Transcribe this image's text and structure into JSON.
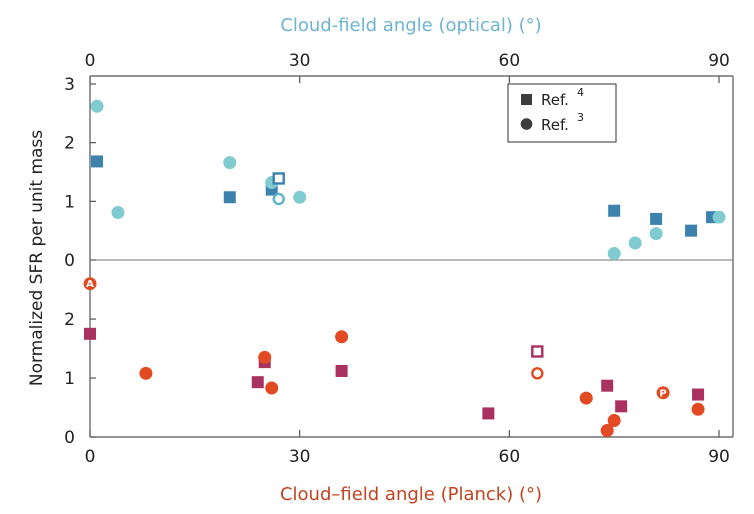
{
  "chart_data": {
    "type": "scatter",
    "colors": {
      "top_square": "#3d82ad",
      "top_circle": "#7fcbd0",
      "top_hollow_square": "#3d82ad",
      "top_hollow_circle": "#5fb3c8",
      "bottom_square": "#a8315f",
      "bottom_circle": "#e14a22",
      "bottom_hollow_square": "#a8315f",
      "bottom_hollow_circle": "#e14a22",
      "top_axis_title": "#6fb3d3",
      "bottom_axis_title": "#c24321",
      "axis_line": "#555555"
    },
    "top_axis": {
      "title": "Cloud-field angle (optical) (°)",
      "ticks": [
        "0",
        "30",
        "60",
        "90"
      ],
      "xlim": [
        0,
        92
      ]
    },
    "bottom_axis": {
      "title": "Cloud–field angle (Planck) (°)",
      "ticks": [
        "0",
        "30",
        "60",
        "90"
      ],
      "xlim": [
        0,
        92
      ]
    },
    "ylabel": "Normalized SFR per unit mass",
    "upper_panel": {
      "ticks": [
        "0",
        "1",
        "2",
        "3"
      ],
      "ylim": [
        0,
        3
      ],
      "series": [
        {
          "marker": "square",
          "color_key": "top_square",
          "points": [
            [
              1,
              1.68
            ],
            [
              20,
              1.07
            ],
            [
              26,
              1.2
            ],
            [
              75,
              0.84
            ],
            [
              81,
              0.7
            ],
            [
              86,
              0.5
            ],
            [
              89,
              0.73
            ]
          ]
        },
        {
          "marker": "circle",
          "color_key": "top_circle",
          "points": [
            [
              1,
              2.62
            ],
            [
              4,
              0.81
            ],
            [
              20,
              1.66
            ],
            [
              26,
              1.32
            ],
            [
              30,
              1.07
            ],
            [
              75,
              0.11
            ],
            [
              78,
              0.29
            ],
            [
              81,
              0.45
            ],
            [
              90,
              0.73
            ]
          ]
        },
        {
          "marker": "hollow-square",
          "color_key": "top_hollow_square",
          "points": [
            [
              27,
              1.39
            ]
          ]
        },
        {
          "marker": "hollow-circle",
          "color_key": "top_hollow_circle",
          "points": [
            [
              27,
              1.04
            ]
          ]
        }
      ]
    },
    "lower_panel": {
      "ticks": [
        "0",
        "1",
        "2"
      ],
      "ylim": [
        0,
        2.9
      ],
      "series": [
        {
          "marker": "square",
          "color_key": "bottom_square",
          "points": [
            [
              0,
              1.75
            ],
            [
              24,
              0.93
            ],
            [
              25,
              1.27
            ],
            [
              36,
              1.12
            ],
            [
              57,
              0.4
            ],
            [
              74,
              0.87
            ],
            [
              76,
              0.52
            ],
            [
              87,
              0.72
            ]
          ]
        },
        {
          "marker": "circle",
          "color_key": "bottom_circle",
          "points": [
            [
              8,
              1.08
            ],
            [
              25,
              1.35
            ],
            [
              26,
              0.83
            ],
            [
              36,
              1.7
            ],
            [
              71,
              0.66
            ],
            [
              74,
              0.11
            ],
            [
              75,
              0.28
            ],
            [
              87,
              0.47
            ]
          ]
        },
        {
          "marker": "hollow-square",
          "color_key": "bottom_hollow_square",
          "points": [
            [
              64,
              1.45
            ]
          ]
        },
        {
          "marker": "hollow-circle",
          "color_key": "bottom_hollow_circle",
          "points": [
            [
              64,
              1.08
            ]
          ]
        },
        {
          "marker": "lettered-circle",
          "color_key": "bottom_circle",
          "points": [
            [
              0,
              2.6,
              "A"
            ],
            [
              82,
              0.75,
              "P"
            ]
          ]
        }
      ]
    },
    "legend": {
      "placement": "top-right",
      "entries": [
        {
          "marker": "square",
          "label": "Ref.",
          "sup": "4"
        },
        {
          "marker": "circle",
          "label": "Ref.",
          "sup": "3"
        }
      ]
    }
  }
}
